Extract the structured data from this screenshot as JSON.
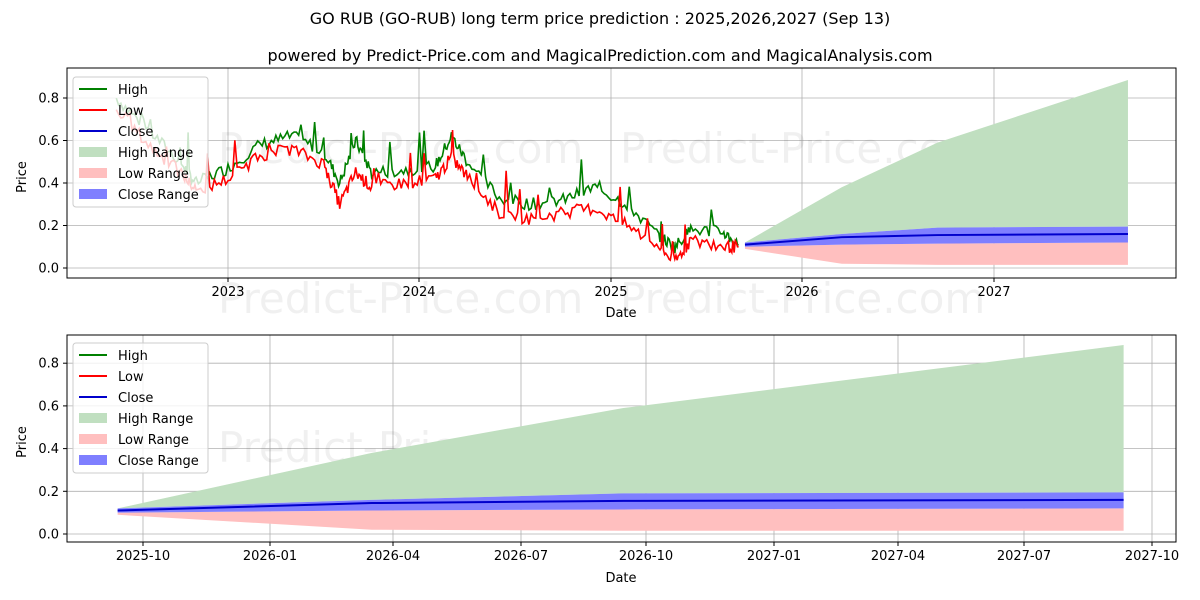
{
  "title": "GO RUB (GO-RUB) long term price prediction : 2025,2026,2027 (Sep 13)",
  "subtitle": "powered by Predict-Price.com and MagicalPrediction.com and MagicalAnalysis.com",
  "watermark": "Predict-Price.com",
  "colors": {
    "high": "#008000",
    "low": "#ff0000",
    "close": "#0000cc",
    "high_range": "#c0dfc0",
    "low_range": "#ffbfbf",
    "close_range": "#7f7fff",
    "grid": "#b0b0b0"
  },
  "legend": [
    "High",
    "Low",
    "Close",
    "High Range",
    "Low Range",
    "Close Range"
  ],
  "chart_data": [
    {
      "type": "line",
      "title": "Top panel: history + forecast",
      "xlabel": "Date",
      "ylabel": "Price",
      "xtick_labels": [
        "2023",
        "2024",
        "2025",
        "2026",
        "2027"
      ],
      "ytick_labels": [
        "0.0",
        "0.2",
        "0.4",
        "0.6",
        "0.8"
      ],
      "ylim": [
        -0.02,
        0.93
      ],
      "grid": true,
      "legend_position": "upper left",
      "history": {
        "dates": [
          "2022-06",
          "2022-08",
          "2022-10",
          "2022-11",
          "2023-01",
          "2023-03",
          "2023-05",
          "2023-07",
          "2023-08",
          "2023-09",
          "2023-10",
          "2023-12",
          "2024-02",
          "2024-03",
          "2024-04",
          "2024-06",
          "2024-08",
          "2024-10",
          "2024-12",
          "2025-02",
          "2025-04",
          "2025-05",
          "2025-06",
          "2025-08",
          "2025-09"
        ],
        "high": [
          0.8,
          0.65,
          0.5,
          0.4,
          0.47,
          0.58,
          0.62,
          0.55,
          0.4,
          0.6,
          0.45,
          0.46,
          0.48,
          0.62,
          0.5,
          0.33,
          0.3,
          0.32,
          0.38,
          0.3,
          0.15,
          0.1,
          0.18,
          0.17,
          0.11
        ],
        "low": [
          0.75,
          0.58,
          0.45,
          0.36,
          0.42,
          0.53,
          0.56,
          0.49,
          0.3,
          0.45,
          0.38,
          0.4,
          0.42,
          0.52,
          0.43,
          0.26,
          0.23,
          0.26,
          0.28,
          0.2,
          0.1,
          0.03,
          0.13,
          0.1,
          0.1
        ]
      },
      "forecast": {
        "dates": [
          "2025-09-13",
          "2026-03-15",
          "2026-09-15",
          "2027-09-13"
        ],
        "close": [
          0.11,
          0.145,
          0.155,
          0.16
        ],
        "high_range_upper": [
          0.12,
          0.38,
          0.59,
          0.885
        ],
        "close_range_upper": [
          0.12,
          0.16,
          0.19,
          0.195
        ],
        "close_range_lower": [
          0.1,
          0.11,
          0.115,
          0.12
        ],
        "low_range_lower": [
          0.09,
          0.02,
          0.015,
          0.015
        ]
      }
    },
    {
      "type": "area",
      "title": "Bottom panel: forecast detail",
      "xlabel": "Date",
      "ylabel": "Price",
      "xtick_labels": [
        "2025-10",
        "2026-01",
        "2026-04",
        "2026-07",
        "2026-10",
        "2027-01",
        "2027-04",
        "2027-07",
        "2027-10"
      ],
      "ytick_labels": [
        "0.0",
        "0.2",
        "0.4",
        "0.6",
        "0.8"
      ],
      "ylim": [
        -0.02,
        0.93
      ],
      "grid": true,
      "legend_position": "upper left",
      "forecast": {
        "dates": [
          "2025-09-13",
          "2026-03-15",
          "2026-09-15",
          "2027-09-13"
        ],
        "close": [
          0.11,
          0.145,
          0.155,
          0.16
        ],
        "high_range_upper": [
          0.12,
          0.38,
          0.59,
          0.885
        ],
        "close_range_upper": [
          0.12,
          0.16,
          0.19,
          0.195
        ],
        "close_range_lower": [
          0.1,
          0.11,
          0.115,
          0.12
        ],
        "low_range_lower": [
          0.09,
          0.02,
          0.015,
          0.015
        ]
      }
    }
  ]
}
